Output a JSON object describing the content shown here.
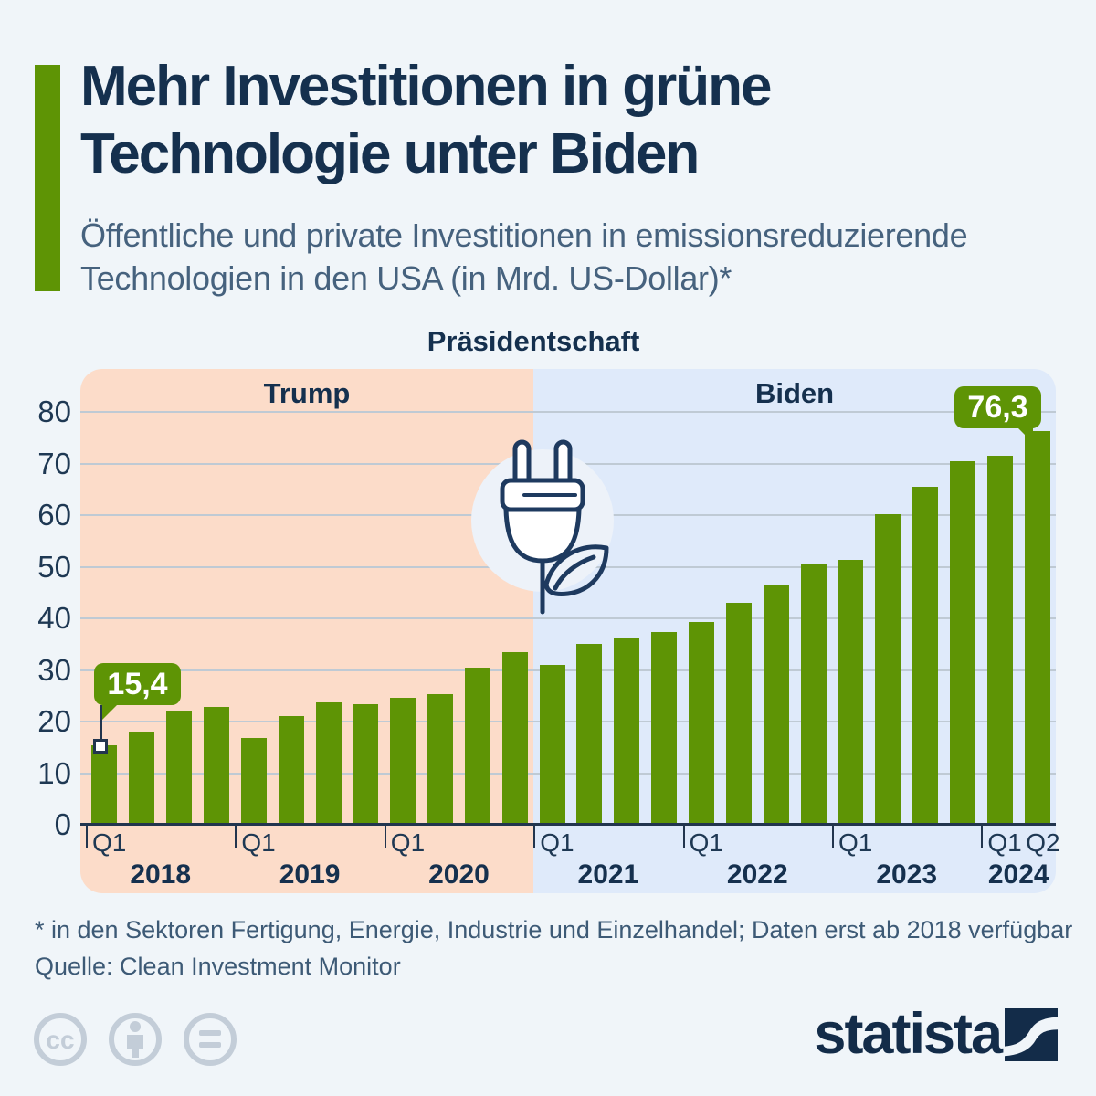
{
  "title": {
    "line1": "Mehr Investitionen in grüne",
    "line2": "Technologie unter Biden"
  },
  "subtitle": {
    "line1": "Öffentliche und private Investitionen in emissionsreduzierende",
    "line2": "Technologien in den USA (in Mrd. US-Dollar)*"
  },
  "chart_data": {
    "type": "bar",
    "title": "Präsidentschaft",
    "unit_note": "in Mrd. US-Dollar",
    "categories": [
      "Q1 2018",
      "Q2 2018",
      "Q3 2018",
      "Q4 2018",
      "Q1 2019",
      "Q2 2019",
      "Q3 2019",
      "Q4 2019",
      "Q1 2020",
      "Q2 2020",
      "Q3 2020",
      "Q4 2020",
      "Q1 2021",
      "Q2 2021",
      "Q3 2021",
      "Q4 2021",
      "Q1 2022",
      "Q2 2022",
      "Q3 2022",
      "Q4 2022",
      "Q1 2023",
      "Q2 2023",
      "Q3 2023",
      "Q4 2023",
      "Q1 2024",
      "Q2 2024"
    ],
    "values": [
      15.4,
      17.9,
      21.9,
      22.8,
      16.8,
      21.1,
      23.7,
      23.3,
      24.7,
      25.3,
      30.5,
      33.5,
      31.0,
      35.0,
      36.3,
      37.3,
      39.4,
      43.1,
      46.5,
      50.6,
      51.3,
      60.3,
      65.6,
      70.5,
      71.5,
      76.3
    ],
    "ylim": [
      0,
      80
    ],
    "yticks": [
      0,
      10,
      20,
      30,
      40,
      50,
      60,
      70,
      80
    ],
    "grid": true,
    "legend_position": "none",
    "bar_color": "#5e9405",
    "regions": [
      {
        "label": "Trump",
        "start_index": 0,
        "end_index": 11,
        "color": "#fcdcc9"
      },
      {
        "label": "Biden",
        "start_index": 12,
        "end_index": 25,
        "color": "#dfeafa"
      }
    ],
    "annotations": [
      {
        "index": 0,
        "label": "15,4",
        "value": 15.4
      },
      {
        "index": 25,
        "label": "76,3",
        "value": 76.3
      }
    ],
    "x_axis": {
      "tick_label": "Q1",
      "tick_indices": [
        0,
        4,
        8,
        12,
        16,
        20,
        24
      ],
      "last_label": "Q2",
      "years": [
        "2018",
        "2019",
        "2020",
        "2021",
        "2022",
        "2023",
        "2024"
      ],
      "year_quarters": [
        4,
        4,
        4,
        4,
        4,
        4,
        2
      ]
    },
    "center_icon": "power-plug-leaf-icon"
  },
  "footnote": {
    "note": "* in den Sektoren Fertigung, Energie, Industrie und Einzelhandel; Daten erst ab 2018 verfügbar",
    "source": "Quelle: Clean Investment Monitor"
  },
  "footer": {
    "license_icons": [
      "cc-icon",
      "attribution-icon",
      "no-derivatives-icon"
    ]
  },
  "brand": {
    "logo_text": "statista"
  },
  "colors": {
    "background": "#f0f5f9",
    "bar_green": "#5e9405",
    "accent_green": "#5e9405",
    "trump_band": "#fcdcc9",
    "biden_band": "#dfeafa",
    "navy_text": "#15304e",
    "slate_text": "#46627e",
    "gridline": "#bfcad4",
    "axis": "#22354e",
    "license_gray": "#c3cdd8",
    "brand_navy": "#132c49"
  }
}
